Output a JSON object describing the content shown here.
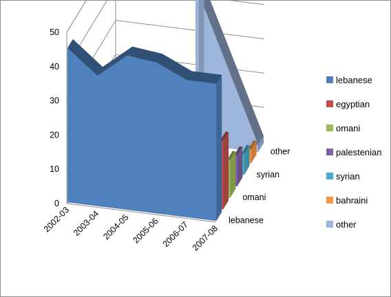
{
  "chart_data": {
    "type": "area",
    "view": "3d",
    "title": "",
    "xlabel": "",
    "ylabel": "",
    "ylim": [
      0,
      50
    ],
    "yticks": [
      0,
      10,
      20,
      30,
      40,
      50
    ],
    "categories": [
      "2002-03",
      "2003-04",
      "2004-05",
      "2005-06",
      "2006-07",
      "2007-08"
    ],
    "depth_labels": [
      "lebanese",
      "omani",
      "syrian",
      "other"
    ],
    "legend_position": "right",
    "series": [
      {
        "name": "lebanese",
        "color": "#4f81bd",
        "values": [
          45,
          38,
          45,
          44,
          40,
          40
        ]
      },
      {
        "name": "egyptian",
        "color": "#c0504d",
        "values": [
          null,
          null,
          null,
          null,
          null,
          20
        ]
      },
      {
        "name": "omani",
        "color": "#9bbb59",
        "values": [
          null,
          null,
          null,
          null,
          null,
          11
        ]
      },
      {
        "name": "palestenian",
        "color": "#8064a2",
        "values": [
          null,
          null,
          null,
          null,
          null,
          9
        ]
      },
      {
        "name": "syrian",
        "color": "#4bacc6",
        "values": [
          null,
          null,
          null,
          null,
          null,
          6
        ]
      },
      {
        "name": "bahraini",
        "color": "#f79646",
        "values": [
          null,
          null,
          null,
          null,
          null,
          4
        ]
      },
      {
        "name": "other",
        "color": "#9fb6dc",
        "values": [
          null,
          null,
          null,
          44,
          null,
          2
        ]
      }
    ]
  }
}
